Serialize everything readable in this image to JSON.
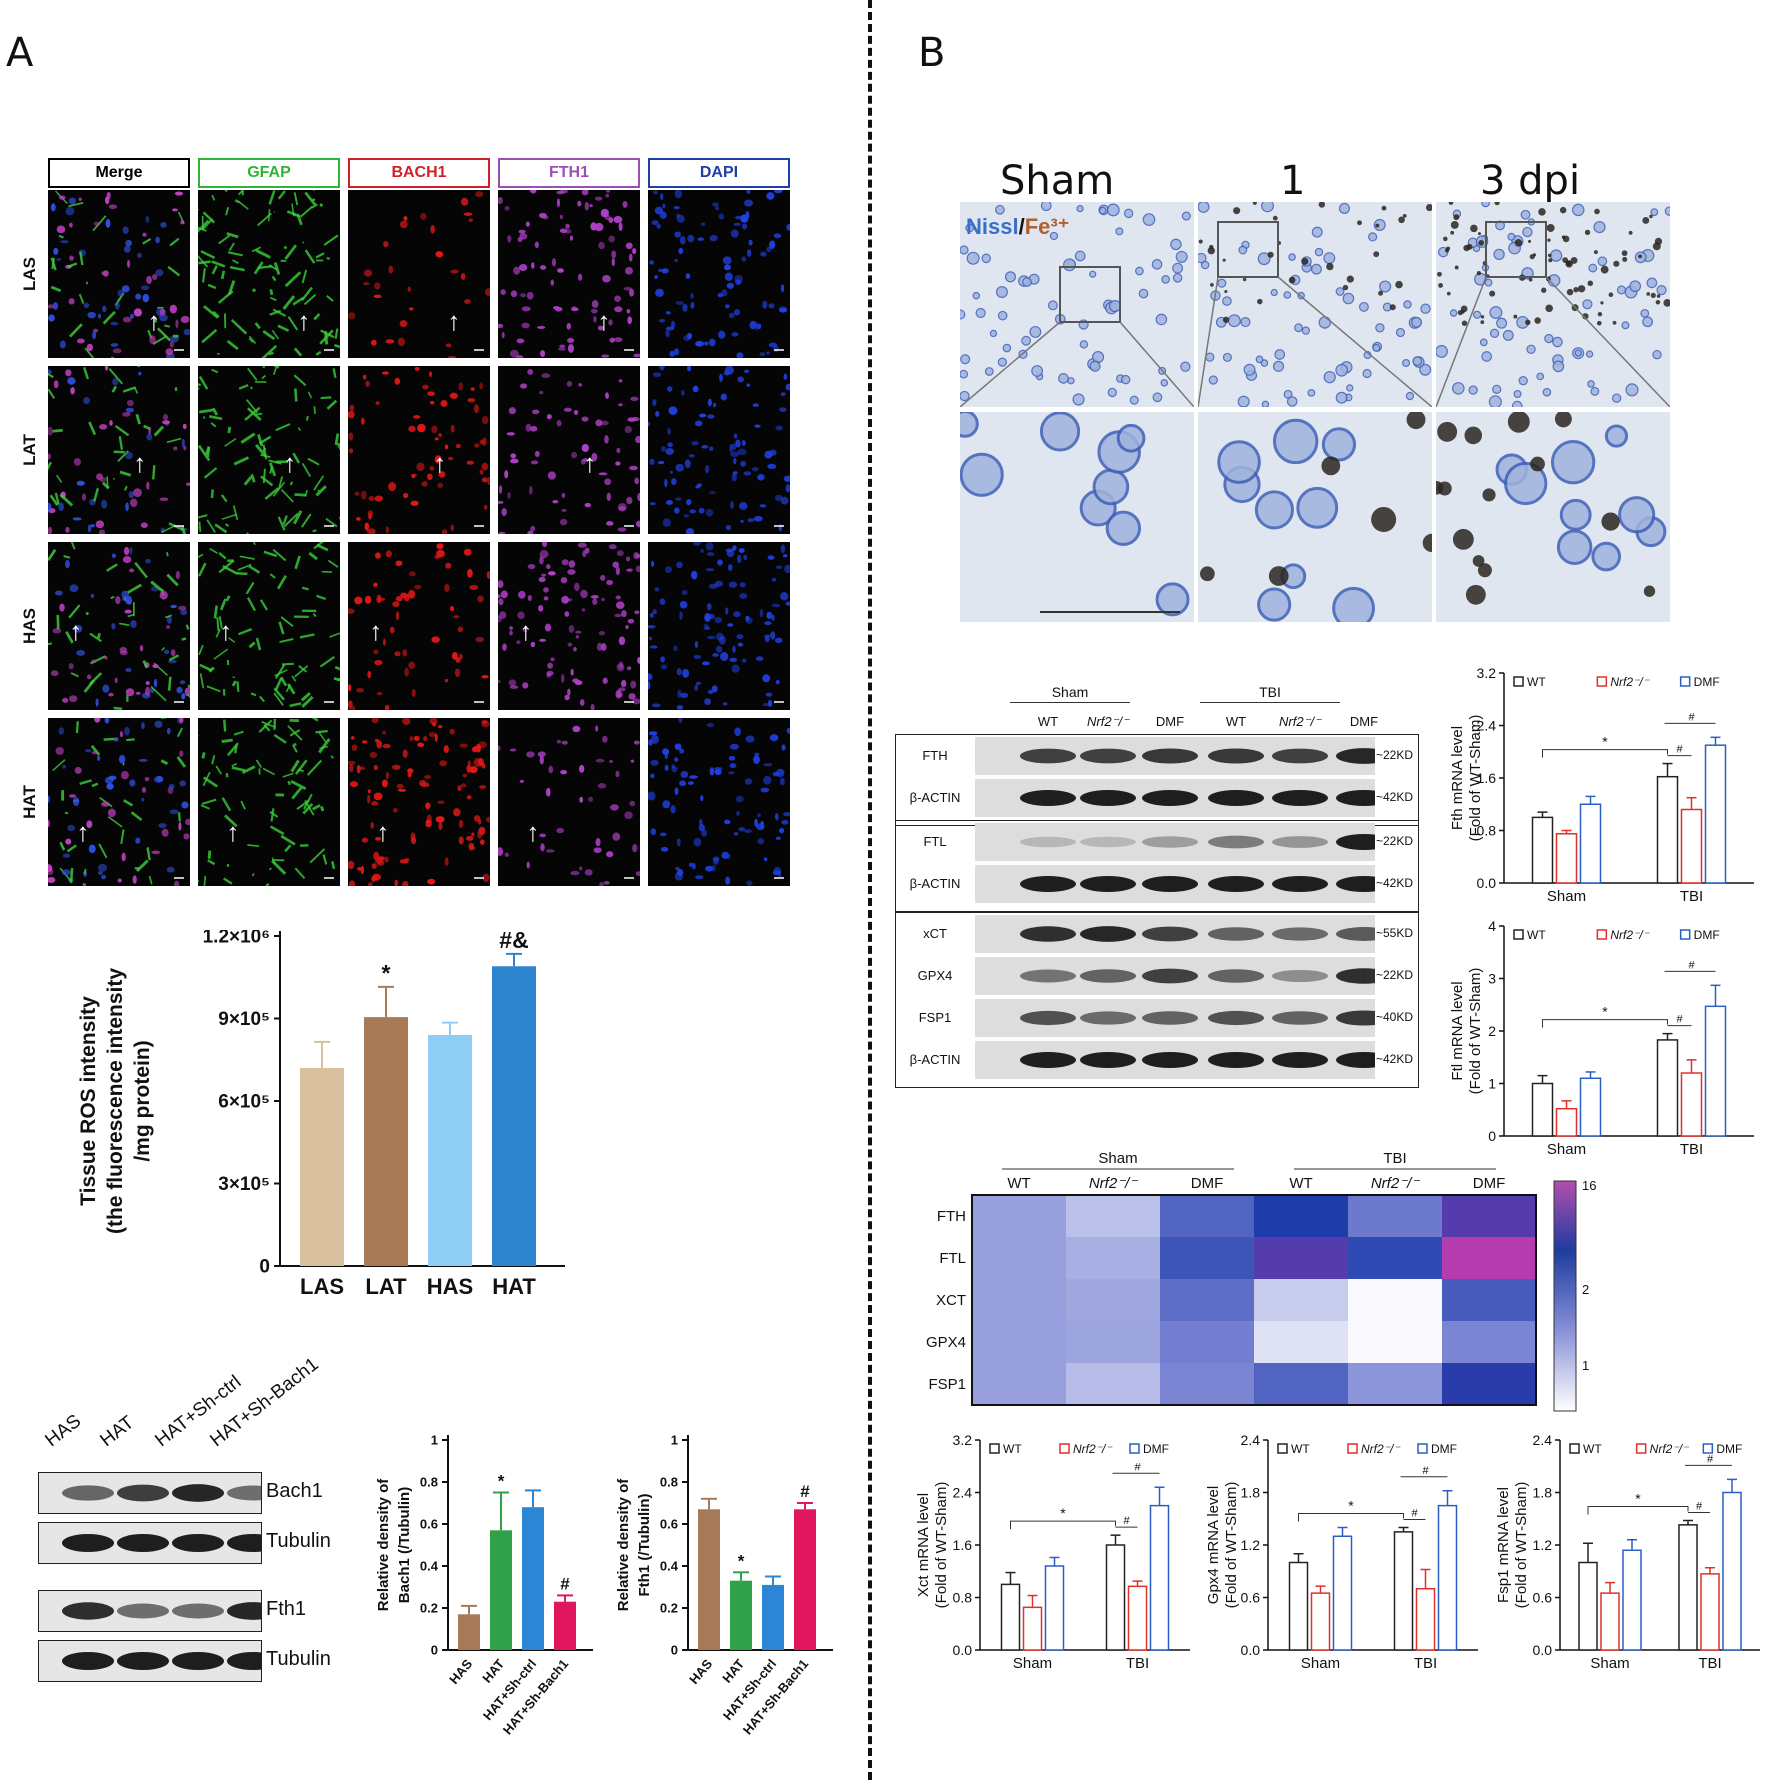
{
  "panels": {
    "a": "A",
    "b": "B"
  },
  "if_panel": {
    "headers": [
      {
        "label": "Merge",
        "color": "#000000"
      },
      {
        "label": "GFAP",
        "color": "#2fb536"
      },
      {
        "label": "BACH1",
        "color": "#d0202a"
      },
      {
        "label": "FTH1",
        "color": "#9b4fb5"
      },
      {
        "label": "DAPI",
        "color": "#1f3fa8"
      }
    ],
    "rows": [
      "LAS",
      "LAT",
      "HAS",
      "HAT"
    ],
    "arrow": "↑"
  },
  "ros_chart": {
    "chart_data": {
      "type": "bar",
      "categories": [
        "LAS",
        "LAT",
        "HAS",
        "HAT"
      ],
      "values": [
        720000,
        905000,
        840000,
        1090000
      ],
      "errors": [
        95000,
        110000,
        45000,
        45000
      ],
      "annotations": [
        "",
        "*",
        "",
        "#&"
      ],
      "colors": [
        "#d8bf9e",
        "#a87a56",
        "#8ecdf4",
        "#2d85d0"
      ],
      "ylabel_lines": [
        "Tissue ROS intensity",
        "(the fluorescence intensity",
        "/mg protein)"
      ],
      "yticks": [
        {
          "v": 0,
          "label": "0"
        },
        {
          "v": 300000,
          "label": "3×10⁵"
        },
        {
          "v": 600000,
          "label": "6×10⁵"
        },
        {
          "v": 900000,
          "label": "9×10⁵"
        },
        {
          "v": 1200000,
          "label": "1.2×10⁶"
        }
      ],
      "ylim": [
        0,
        1200000
      ]
    }
  },
  "wb_a": {
    "lanes": [
      "HAS",
      "HAT",
      "HAT+Sh-ctrl",
      "HAT+Sh-Bach1"
    ],
    "bands": [
      "Bach1",
      "Tubulin",
      "Fth1",
      "Tubulin"
    ]
  },
  "bach1_chart": {
    "chart_data": {
      "type": "bar",
      "categories": [
        "HAS",
        "HAT",
        "HAT+Sh-ctrl",
        "HAT+Sh-Bach1"
      ],
      "values": [
        0.17,
        0.57,
        0.68,
        0.23
      ],
      "errors": [
        0.04,
        0.18,
        0.08,
        0.03
      ],
      "annotations": [
        "",
        "*",
        "",
        "#"
      ],
      "colors": [
        "#a67a58",
        "#2fa14a",
        "#2c86d6",
        "#e0175f"
      ],
      "ylabel_lines": [
        "Relative density of",
        "Bach1 (/Tubulin)"
      ],
      "yticks": [
        0,
        0.2,
        0.4,
        0.6,
        0.8,
        1.0
      ],
      "ylim": [
        0,
        1.0
      ]
    }
  },
  "fth1_chart": {
    "chart_data": {
      "type": "bar",
      "categories": [
        "HAS",
        "HAT",
        "HAT+Sh-ctrl",
        "HAT+Sh-Bach1"
      ],
      "values": [
        0.67,
        0.33,
        0.31,
        0.67
      ],
      "errors": [
        0.05,
        0.04,
        0.04,
        0.03
      ],
      "annotations": [
        "",
        "*",
        "",
        "#"
      ],
      "colors": [
        "#a67a58",
        "#2fa14a",
        "#2c86d6",
        "#e0175f"
      ],
      "ylabel_lines": [
        "Relative density of",
        "Fth1 (/Tubulin)"
      ],
      "yticks": [
        0,
        0.2,
        0.4,
        0.6,
        0.8,
        1.0
      ],
      "ylim": [
        0,
        1.0
      ]
    }
  },
  "ihc_panel": {
    "titles": [
      "Sham",
      "1",
      "3 dpi"
    ],
    "stain_nissl": "Nissl",
    "stain_sep": "/",
    "stain_fe": "Fe³⁺"
  },
  "wb_b": {
    "groups": [
      "Sham",
      "TBI"
    ],
    "lanes": [
      "WT",
      "Nrf2⁻/⁻",
      "DMF",
      "WT",
      "Nrf2⁻/⁻",
      "DMF"
    ],
    "blocks": [
      {
        "bands": [
          {
            "name": "FTH",
            "kd": "~22KD"
          },
          {
            "name": "β-ACTIN",
            "kd": "~42KD"
          }
        ]
      },
      {
        "bands": [
          {
            "name": "FTL",
            "kd": "~22KD"
          },
          {
            "name": "β-ACTIN",
            "kd": "~42KD"
          }
        ]
      },
      {
        "bands": [
          {
            "name": "xCT",
            "kd": "~55KD"
          },
          {
            "name": "GPX4",
            "kd": "~22KD"
          },
          {
            "name": "FSP1",
            "kd": "~40KD"
          },
          {
            "name": "β-ACTIN",
            "kd": "~42KD"
          }
        ]
      }
    ]
  },
  "mrna_legend": [
    "WT",
    "Nrf2⁻/⁻",
    "DMF"
  ],
  "mrna_colors": [
    "#222222",
    "#e0302a",
    "#2b5fc4"
  ],
  "mrna_groups": [
    "Sham",
    "TBI"
  ],
  "sig_marks": {
    "star": "*",
    "hash": "#"
  },
  "fth_mrna": {
    "chart_data": {
      "type": "bar",
      "groups": [
        "Sham",
        "TBI"
      ],
      "series": [
        {
          "name": "WT",
          "values": [
            1.0,
            1.62
          ],
          "errors": [
            0.08,
            0.2
          ]
        },
        {
          "name": "Nrf2⁻/⁻",
          "values": [
            0.75,
            1.12
          ],
          "errors": [
            0.05,
            0.18
          ]
        },
        {
          "name": "DMF",
          "values": [
            1.2,
            2.1
          ],
          "errors": [
            0.12,
            0.12
          ]
        }
      ],
      "ylabel": "Fth mRNA level",
      "ylabel2": "(Fold of WT-Sham)",
      "yticks": [
        "0.0",
        "0.8",
        "1.6",
        "2.4",
        "3.2"
      ],
      "ylim": [
        0,
        3.2
      ]
    }
  },
  "ftl_mrna": {
    "chart_data": {
      "type": "bar",
      "groups": [
        "Sham",
        "TBI"
      ],
      "series": [
        {
          "name": "WT",
          "values": [
            1.0,
            1.83
          ],
          "errors": [
            0.15,
            0.12
          ]
        },
        {
          "name": "Nrf2⁻/⁻",
          "values": [
            0.52,
            1.2
          ],
          "errors": [
            0.15,
            0.25
          ]
        },
        {
          "name": "DMF",
          "values": [
            1.1,
            2.47
          ],
          "errors": [
            0.12,
            0.4
          ]
        }
      ],
      "ylabel": "Ftl mRNA level",
      "ylabel2": "(Fold of WT-Sham)",
      "yticks": [
        "0",
        "1",
        "2",
        "3",
        "4"
      ],
      "ylim": [
        0,
        4
      ]
    }
  },
  "xct_mrna": {
    "chart_data": {
      "type": "bar",
      "groups": [
        "Sham",
        "TBI"
      ],
      "series": [
        {
          "name": "WT",
          "values": [
            1.0,
            1.6
          ],
          "errors": [
            0.18,
            0.15
          ]
        },
        {
          "name": "Nrf2⁻/⁻",
          "values": [
            0.65,
            0.97
          ],
          "errors": [
            0.18,
            0.08
          ]
        },
        {
          "name": "DMF",
          "values": [
            1.28,
            2.2
          ],
          "errors": [
            0.13,
            0.28
          ]
        }
      ],
      "ylabel": "Xct mRNA level",
      "ylabel2": "(Fold of WT-Sham)",
      "yticks": [
        "0.0",
        "0.8",
        "1.6",
        "2.4",
        "3.2"
      ],
      "ylim": [
        0,
        3.2
      ]
    }
  },
  "gpx4_mrna": {
    "chart_data": {
      "type": "bar",
      "groups": [
        "Sham",
        "TBI"
      ],
      "series": [
        {
          "name": "WT",
          "values": [
            1.0,
            1.35
          ],
          "errors": [
            0.1,
            0.05
          ]
        },
        {
          "name": "Nrf2⁻/⁻",
          "values": [
            0.65,
            0.7
          ],
          "errors": [
            0.08,
            0.22
          ]
        },
        {
          "name": "DMF",
          "values": [
            1.3,
            1.65
          ],
          "errors": [
            0.1,
            0.17
          ]
        }
      ],
      "ylabel": "Gpx4 mRNA level",
      "ylabel2": "(Fold of WT-Sham)",
      "yticks": [
        "0.0",
        "0.6",
        "1.2",
        "1.8",
        "2.4"
      ],
      "ylim": [
        0,
        2.4
      ]
    }
  },
  "fsp1_mrna": {
    "chart_data": {
      "type": "bar",
      "groups": [
        "Sham",
        "TBI"
      ],
      "series": [
        {
          "name": "WT",
          "values": [
            1.0,
            1.43
          ],
          "errors": [
            0.22,
            0.05
          ]
        },
        {
          "name": "Nrf2⁻/⁻",
          "values": [
            0.65,
            0.87
          ],
          "errors": [
            0.12,
            0.07
          ]
        },
        {
          "name": "DMF",
          "values": [
            1.14,
            1.8
          ],
          "errors": [
            0.12,
            0.15
          ]
        }
      ],
      "ylabel": "Fsp1 mRNA level",
      "ylabel2": "(Fold of WT-Sham)",
      "yticks": [
        "0.0",
        "0.6",
        "1.2",
        "1.8",
        "2.4"
      ],
      "ylim": [
        0,
        2.4
      ]
    }
  },
  "heatmap": {
    "chart_data": {
      "type": "heatmap",
      "groups": [
        "Sham",
        "TBI"
      ],
      "columns": [
        "WT",
        "Nrf2⁻/⁻",
        "DMF",
        "WT",
        "Nrf2⁻/⁻",
        "DMF"
      ],
      "rows": [
        "FTH",
        "FTL",
        "XCT",
        "GPX4",
        "FSP1"
      ],
      "values": [
        [
          1.0,
          0.55,
          3.0,
          6.5,
          2.0,
          9.0
        ],
        [
          1.0,
          0.75,
          4.0,
          9.0,
          5.0,
          16.0
        ],
        [
          1.0,
          0.85,
          2.5,
          0.45,
          0.2,
          3.5
        ],
        [
          1.0,
          0.9,
          1.8,
          0.3,
          0.2,
          1.6
        ],
        [
          1.0,
          0.6,
          1.6,
          3.0,
          1.2,
          7.0
        ]
      ],
      "scale_ticks": [
        "16",
        "2",
        "1"
      ]
    }
  }
}
